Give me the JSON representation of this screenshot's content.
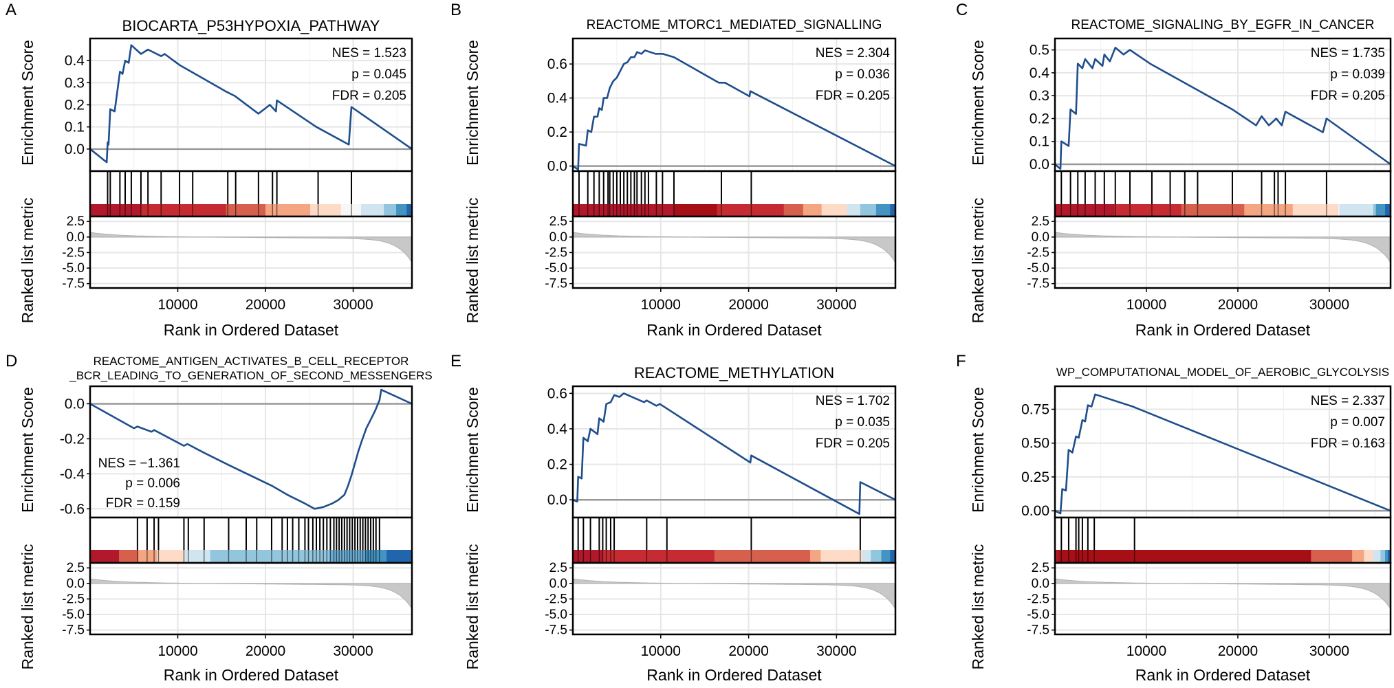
{
  "figure": {
    "rank_axis_label": "Rank in Ordered Dataset",
    "es_axis_label": "Enrichment Score",
    "metric_axis_label": "Ranked list metric",
    "rank_ticks": [
      "10000",
      "20000",
      "30000"
    ],
    "metric_ticks": [
      "2.5",
      "0.0",
      "-2.5",
      "-5.0",
      "-7.5"
    ],
    "colors": {
      "es_line": "#1f4e8c",
      "baseline": "#999999",
      "grid": "#e6e6e6",
      "metric_fill": "#c8c8c8",
      "hit_line": "#000000"
    }
  },
  "chart_data": [
    {
      "type": "line",
      "panel": "A",
      "title": "BIOCARTA_P53HYPOXIA_PATHWAY",
      "xlabel": "Rank in Ordered Dataset",
      "ylabel": "Enrichment Score",
      "xlim": [
        0,
        36700
      ],
      "ylim": [
        -0.1,
        0.5
      ],
      "y_ticks": [
        "0.0",
        "0.1",
        "0.2",
        "0.3",
        "0.4"
      ],
      "stats": [
        "NES = 1.523",
        "p = 0.045",
        "FDR = 0.205"
      ],
      "stats_position": "top-right",
      "es_points": [
        [
          0,
          0
        ],
        [
          1900,
          -0.06
        ],
        [
          2000,
          0.03
        ],
        [
          2100,
          0.02
        ],
        [
          2300,
          0.18
        ],
        [
          2800,
          0.17
        ],
        [
          3400,
          0.35
        ],
        [
          3700,
          0.34
        ],
        [
          4000,
          0.4
        ],
        [
          4400,
          0.39
        ],
        [
          4700,
          0.47
        ],
        [
          5800,
          0.43
        ],
        [
          6600,
          0.45
        ],
        [
          8100,
          0.42
        ],
        [
          8500,
          0.43
        ],
        [
          10200,
          0.38
        ],
        [
          15500,
          0.26
        ],
        [
          16500,
          0.24
        ],
        [
          19200,
          0.16
        ],
        [
          20500,
          0.2
        ],
        [
          21200,
          0.17
        ],
        [
          21300,
          0.22
        ],
        [
          25800,
          0.1
        ],
        [
          29500,
          0.02
        ],
        [
          29800,
          0.19
        ],
        [
          36700,
          0
        ]
      ],
      "hits": [
        2000,
        2300,
        3400,
        4000,
        4700,
        5800,
        6600,
        8100,
        10200,
        11700,
        15700,
        16600,
        19200,
        20800,
        21300,
        26000,
        29800
      ],
      "heatmap_colors": [
        "#b2182b",
        "#c62a32",
        "#d6604d",
        "#f4a582",
        "#fddbc7",
        "#f7f7f7",
        "#d1e5f0",
        "#92c5de",
        "#4393c3",
        "#2166ac"
      ],
      "heatmap_stops": [
        0,
        5800,
        15500,
        20000,
        25100,
        28600,
        30900,
        33500,
        34900,
        36100
      ]
    },
    {
      "type": "line",
      "panel": "B",
      "title": "REACTOME_MTORC1_MEDIATED_SIGNALLING",
      "xlabel": "Rank in Ordered Dataset",
      "ylabel": "Enrichment Score",
      "xlim": [
        0,
        36700
      ],
      "ylim": [
        -0.03,
        0.75
      ],
      "y_ticks": [
        "0.0",
        "0.2",
        "0.4",
        "0.6"
      ],
      "stats": [
        "NES = 2.304",
        "p = 0.036",
        "FDR = 0.205"
      ],
      "stats_position": "top-right",
      "es_points": [
        [
          0,
          0
        ],
        [
          600,
          -0.02
        ],
        [
          700,
          0.13
        ],
        [
          1500,
          0.12
        ],
        [
          1700,
          0.21
        ],
        [
          2100,
          0.2
        ],
        [
          2400,
          0.29
        ],
        [
          2800,
          0.29
        ],
        [
          3000,
          0.34
        ],
        [
          3300,
          0.33
        ],
        [
          3500,
          0.4
        ],
        [
          3900,
          0.4
        ],
        [
          4200,
          0.46
        ],
        [
          4600,
          0.5
        ],
        [
          5000,
          0.52
        ],
        [
          5400,
          0.56
        ],
        [
          5800,
          0.6
        ],
        [
          6200,
          0.61
        ],
        [
          6600,
          0.64
        ],
        [
          7000,
          0.64
        ],
        [
          7300,
          0.67
        ],
        [
          7800,
          0.66
        ],
        [
          8200,
          0.68
        ],
        [
          9400,
          0.66
        ],
        [
          10200,
          0.66
        ],
        [
          11500,
          0.64
        ],
        [
          16600,
          0.49
        ],
        [
          17300,
          0.49
        ],
        [
          20100,
          0.41
        ],
        [
          20200,
          0.44
        ],
        [
          36700,
          0
        ]
      ],
      "hits": [
        700,
        1700,
        2400,
        3000,
        3500,
        4000,
        4200,
        4600,
        5000,
        5400,
        5800,
        6200,
        6600,
        7000,
        7300,
        7800,
        8200,
        8600,
        9500,
        10200,
        11500,
        16900,
        20300
      ],
      "heatmap_colors": [
        "#b2182b",
        "#a50f15",
        "#c62a32",
        "#d6604d",
        "#f4a582",
        "#fddbc7",
        "#d1e5f0",
        "#92c5de",
        "#4393c3",
        "#2166ac"
      ],
      "heatmap_stops": [
        0,
        11500,
        16400,
        24000,
        26200,
        28300,
        31200,
        32700,
        34500,
        36100
      ]
    },
    {
      "type": "line",
      "panel": "C",
      "title": "REACTOME_SIGNALING_BY_EGFR_IN_CANCER",
      "xlabel": "Rank in Ordered Dataset",
      "ylabel": "Enrichment Score",
      "xlim": [
        0,
        36700
      ],
      "ylim": [
        -0.03,
        0.55
      ],
      "y_ticks": [
        "0.0",
        "0.1",
        "0.2",
        "0.3",
        "0.4",
        "0.5"
      ],
      "stats": [
        "NES = 1.735",
        "p = 0.039",
        "FDR = 0.205"
      ],
      "stats_position": "top-right",
      "es_points": [
        [
          0,
          0
        ],
        [
          600,
          -0.02
        ],
        [
          700,
          0.1
        ],
        [
          1500,
          0.08
        ],
        [
          1700,
          0.24
        ],
        [
          2300,
          0.22
        ],
        [
          2500,
          0.44
        ],
        [
          3000,
          0.42
        ],
        [
          3300,
          0.46
        ],
        [
          4100,
          0.42
        ],
        [
          4400,
          0.46
        ],
        [
          5200,
          0.43
        ],
        [
          5400,
          0.48
        ],
        [
          6000,
          0.45
        ],
        [
          6600,
          0.51
        ],
        [
          7500,
          0.48
        ],
        [
          8200,
          0.5
        ],
        [
          10400,
          0.44
        ],
        [
          19400,
          0.24
        ],
        [
          22000,
          0.17
        ],
        [
          22600,
          0.21
        ],
        [
          23400,
          0.17
        ],
        [
          24200,
          0.2
        ],
        [
          24800,
          0.17
        ],
        [
          25200,
          0.23
        ],
        [
          29300,
          0.14
        ],
        [
          29700,
          0.2
        ],
        [
          36700,
          0
        ]
      ],
      "hits": [
        700,
        1700,
        2500,
        3300,
        4400,
        5400,
        6600,
        8200,
        10600,
        12600,
        14200,
        15600,
        19400,
        22600,
        24000,
        24400,
        25200,
        29700
      ],
      "heatmap_colors": [
        "#b2182b",
        "#c62a32",
        "#d6604d",
        "#f4a582",
        "#fddbc7",
        "#f7f7f7",
        "#d1e5f0",
        "#92c5de",
        "#4393c3",
        "#2166ac"
      ],
      "heatmap_stops": [
        0,
        6500,
        13800,
        20700,
        26000,
        31000,
        31100,
        34800,
        35100,
        36100
      ]
    },
    {
      "type": "line",
      "panel": "D",
      "title_lines": [
        "REACTOME_ANTIGEN_ACTIVATES_B_CELL_RECEPTOR",
        "_BCR_LEADING_TO_GENERATION_OF_SECOND_MESSENGERS"
      ],
      "xlabel": "Rank in Ordered Dataset",
      "ylabel": "Enrichment Score",
      "xlim": [
        0,
        36700
      ],
      "ylim": [
        -0.65,
        0.1
      ],
      "y_ticks": [
        "0.0",
        "-0.2",
        "-0.4",
        "-0.6"
      ],
      "stats": [
        "NES = −1.361",
        "p = 0.006",
        "FDR = 0.159"
      ],
      "stats_position": "bottom-left",
      "es_points": [
        [
          0,
          0
        ],
        [
          5000,
          -0.14
        ],
        [
          5400,
          -0.13
        ],
        [
          7000,
          -0.16
        ],
        [
          7300,
          -0.15
        ],
        [
          10700,
          -0.24
        ],
        [
          11100,
          -0.23
        ],
        [
          13000,
          -0.28
        ],
        [
          15800,
          -0.35
        ],
        [
          20800,
          -0.47
        ],
        [
          22500,
          -0.52
        ],
        [
          24500,
          -0.57
        ],
        [
          25600,
          -0.6
        ],
        [
          26600,
          -0.59
        ],
        [
          27600,
          -0.57
        ],
        [
          28300,
          -0.55
        ],
        [
          29000,
          -0.52
        ],
        [
          29400,
          -0.47
        ],
        [
          29800,
          -0.41
        ],
        [
          30200,
          -0.34
        ],
        [
          30600,
          -0.27
        ],
        [
          31000,
          -0.21
        ],
        [
          31500,
          -0.14
        ],
        [
          32000,
          -0.09
        ],
        [
          32500,
          -0.04
        ],
        [
          33000,
          0.02
        ],
        [
          33200,
          0.08
        ],
        [
          36700,
          0
        ]
      ],
      "hits": [
        5400,
        6500,
        7300,
        7800,
        10700,
        11200,
        13000,
        15800,
        17800,
        19000,
        20700,
        21900,
        22500,
        23100,
        23800,
        24500,
        24900,
        25400,
        25800,
        26200,
        26600,
        27000,
        27400,
        27800,
        28100,
        28400,
        28700,
        29000,
        29300,
        29600,
        29900,
        30200,
        30500,
        30800,
        31100,
        31400,
        31700,
        32000,
        32300,
        32600,
        33000
      ],
      "heatmap_colors": [
        "#b2182b",
        "#d6604d",
        "#f4a582",
        "#fddbc7",
        "#d1e5f0",
        "#92c5de",
        "#6baed6",
        "#4393c3",
        "#2166ac"
      ],
      "heatmap_stops": [
        0,
        3300,
        5500,
        7600,
        10700,
        13700,
        27300,
        31400,
        33800
      ]
    },
    {
      "type": "line",
      "panel": "E",
      "title": "REACTOME_METHYLATION",
      "xlabel": "Rank in Ordered Dataset",
      "ylabel": "Enrichment Score",
      "xlim": [
        0,
        36700
      ],
      "ylim": [
        -0.1,
        0.64
      ],
      "y_ticks": [
        "0.0",
        "0.2",
        "0.4",
        "0.6"
      ],
      "stats": [
        "NES = 1.702",
        "p = 0.035",
        "FDR = 0.205"
      ],
      "stats_position": "top-right",
      "es_points": [
        [
          0,
          0
        ],
        [
          500,
          -0.01
        ],
        [
          600,
          0.13
        ],
        [
          1000,
          0.12
        ],
        [
          1200,
          0.35
        ],
        [
          1700,
          0.33
        ],
        [
          2000,
          0.4
        ],
        [
          2800,
          0.37
        ],
        [
          3000,
          0.46
        ],
        [
          3500,
          0.44
        ],
        [
          3800,
          0.54
        ],
        [
          4300,
          0.55
        ],
        [
          4700,
          0.59
        ],
        [
          5300,
          0.58
        ],
        [
          5800,
          0.6
        ],
        [
          8100,
          0.55
        ],
        [
          8400,
          0.56
        ],
        [
          9500,
          0.53
        ],
        [
          9900,
          0.54
        ],
        [
          20200,
          0.21
        ],
        [
          20300,
          0.25
        ],
        [
          32600,
          -0.08
        ],
        [
          32700,
          0.1
        ],
        [
          36700,
          0
        ]
      ],
      "hits": [
        600,
        1200,
        2000,
        3000,
        3400,
        3800,
        4300,
        4700,
        8400,
        10700,
        20300,
        32700
      ],
      "heatmap_colors": [
        "#b2182b",
        "#c62a32",
        "#d6604d",
        "#f4a582",
        "#fddbc7",
        "#d1e5f0",
        "#92c5de",
        "#4393c3",
        "#2166ac"
      ],
      "heatmap_stops": [
        0,
        3400,
        16100,
        27000,
        28200,
        32900,
        33900,
        35100,
        36100
      ]
    },
    {
      "type": "line",
      "panel": "F",
      "title": "WP_COMPUTATIONAL_MODEL_OF_AEROBIC_GLYCOLYSIS",
      "xlabel": "Rank in Ordered Dataset",
      "ylabel": "Enrichment Score",
      "xlim": [
        0,
        36700
      ],
      "ylim": [
        -0.05,
        0.92
      ],
      "y_ticks": [
        "0.00",
        "0.25",
        "0.50",
        "0.75"
      ],
      "stats": [
        "NES = 2.337",
        "p = 0.007",
        "FDR = 0.163"
      ],
      "stats_position": "top-right",
      "es_points": [
        [
          0,
          0
        ],
        [
          600,
          -0.02
        ],
        [
          800,
          0.16
        ],
        [
          1200,
          0.15
        ],
        [
          1500,
          0.45
        ],
        [
          1900,
          0.43
        ],
        [
          2300,
          0.55
        ],
        [
          2600,
          0.54
        ],
        [
          3000,
          0.67
        ],
        [
          3300,
          0.66
        ],
        [
          3600,
          0.78
        ],
        [
          4000,
          0.77
        ],
        [
          4400,
          0.86
        ],
        [
          8500,
          0.77
        ],
        [
          36700,
          0
        ]
      ],
      "hits": [
        700,
        1500,
        2300,
        2600,
        3000,
        3600,
        4300,
        8700
      ],
      "heatmap_colors": [
        "#b2182b",
        "#a50f15",
        "#d6604d",
        "#f4a582",
        "#fddbc7",
        "#d1e5f0",
        "#92c5de",
        "#4393c3",
        "#2166ac"
      ],
      "heatmap_stops": [
        0,
        400,
        28000,
        32500,
        33800,
        34800,
        35600,
        36100,
        36400
      ]
    }
  ]
}
